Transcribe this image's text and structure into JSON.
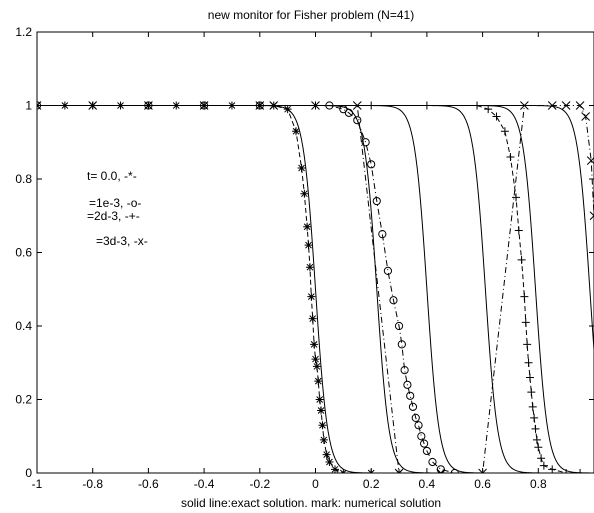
{
  "chart_data": {
    "type": "line",
    "title": "new monitor for Fisher problem (N=41)",
    "xlabel": "solid line:exact solution. mark: numerical solution",
    "ylabel": "",
    "xlim": [
      -1,
      1
    ],
    "ylim": [
      0,
      1.2
    ],
    "x_ticks": [
      -1,
      -0.8,
      -0.6,
      -0.4,
      -0.2,
      0,
      0.2,
      0.4,
      0.6,
      0.8
    ],
    "x_tick_labels": [
      "-1",
      "-0.8",
      "-0.6",
      "-0.4",
      "-0.2",
      "0",
      "0.2",
      "0.4",
      "0.6",
      "0.8"
    ],
    "y_ticks": [
      0,
      0.2,
      0.4,
      0.6,
      0.8,
      1,
      1.2
    ],
    "y_tick_labels": [
      "0",
      "0.2",
      "0.4",
      "0.6",
      "0.8",
      "1",
      "1.2"
    ],
    "grid": false,
    "legend_position": "left",
    "legend": [
      {
        "label": "t= 0.0, -*-",
        "pos": "a"
      },
      {
        "label": "=1e-3, -o-",
        "pos": "b"
      },
      {
        "label": "=2d-3, -+-",
        "pos": "c"
      },
      {
        "label": "=3d-3, -x-",
        "pos": "d"
      }
    ],
    "exact_solution_fronts": [
      {
        "center": 0.0,
        "width": 0.022
      },
      {
        "center": 0.22,
        "width": 0.022
      },
      {
        "center": 0.4,
        "width": 0.022
      },
      {
        "center": 0.61,
        "width": 0.022
      },
      {
        "center": 0.79,
        "width": 0.022
      },
      {
        "center": 0.985,
        "width": 0.022
      }
    ],
    "series": [
      {
        "name": "t= 0.0",
        "marker": "*",
        "line": "dashed",
        "x": [
          -1,
          -0.9,
          -0.8,
          -0.7,
          -0.6,
          -0.5,
          -0.4,
          -0.3,
          -0.2,
          -0.15,
          -0.1,
          -0.07,
          -0.05,
          -0.04,
          -0.03,
          -0.025,
          -0.02,
          -0.015,
          -0.01,
          -0.005,
          0.0,
          0.005,
          0.01,
          0.015,
          0.02,
          0.025,
          0.03,
          0.04,
          0.05,
          0.07,
          0.1,
          0.2,
          0.3
        ],
        "y": [
          1,
          1,
          1,
          1,
          1,
          1,
          1,
          1,
          1,
          1,
          0.99,
          0.93,
          0.83,
          0.76,
          0.67,
          0.62,
          0.56,
          0.48,
          0.42,
          0.35,
          0.31,
          0.29,
          0.25,
          0.2,
          0.17,
          0.13,
          0.09,
          0.05,
          0.03,
          0.01,
          0,
          0,
          0
        ]
      },
      {
        "name": "=1e-3",
        "marker": "o",
        "line": "dashdot",
        "x": [
          -1,
          -0.6,
          -0.4,
          -0.2,
          0.05,
          0.1,
          0.12,
          0.15,
          0.18,
          0.2,
          0.22,
          0.24,
          0.26,
          0.28,
          0.3,
          0.31,
          0.32,
          0.33,
          0.34,
          0.35,
          0.36,
          0.37,
          0.38,
          0.39,
          0.4,
          0.42,
          0.45,
          0.5
        ],
        "y": [
          1,
          1,
          1,
          1,
          1,
          0.99,
          0.98,
          0.96,
          0.9,
          0.84,
          0.74,
          0.65,
          0.55,
          0.47,
          0.4,
          0.35,
          0.28,
          0.24,
          0.21,
          0.18,
          0.15,
          0.13,
          0.1,
          0.08,
          0.06,
          0.03,
          0.01,
          0
        ]
      },
      {
        "name": "=2d-3",
        "marker": "+",
        "line": "dashed",
        "x": [
          -1,
          -0.8,
          -0.6,
          -0.4,
          -0.2,
          0.0,
          0.2,
          0.4,
          0.58,
          0.62,
          0.65,
          0.68,
          0.7,
          0.72,
          0.73,
          0.74,
          0.75,
          0.755,
          0.76,
          0.765,
          0.77,
          0.775,
          0.78,
          0.785,
          0.79,
          0.795,
          0.8,
          0.81,
          0.82,
          0.85,
          0.9,
          0.95,
          1.0
        ],
        "y": [
          1,
          1,
          1,
          1,
          1,
          1,
          1,
          1,
          1,
          0.99,
          0.97,
          0.93,
          0.86,
          0.75,
          0.66,
          0.58,
          0.48,
          0.41,
          0.35,
          0.3,
          0.26,
          0.22,
          0.18,
          0.15,
          0.12,
          0.09,
          0.07,
          0.04,
          0.02,
          0.01,
          0,
          0,
          0
        ]
      },
      {
        "name": "=3d-3",
        "marker": "x",
        "line": "dashdot",
        "x": [
          -1,
          -0.8,
          -0.6,
          -0.4,
          -0.2,
          -0.15,
          0.0,
          0.15,
          0.3,
          0.45,
          0.6,
          0.75,
          0.85,
          0.9,
          0.95,
          0.97,
          0.99,
          1.0
        ],
        "y": [
          1,
          1,
          1,
          1,
          1,
          1,
          1,
          1,
          0,
          0,
          0,
          1,
          1,
          1,
          1,
          0.97,
          0.85,
          0.7
        ]
      }
    ]
  }
}
